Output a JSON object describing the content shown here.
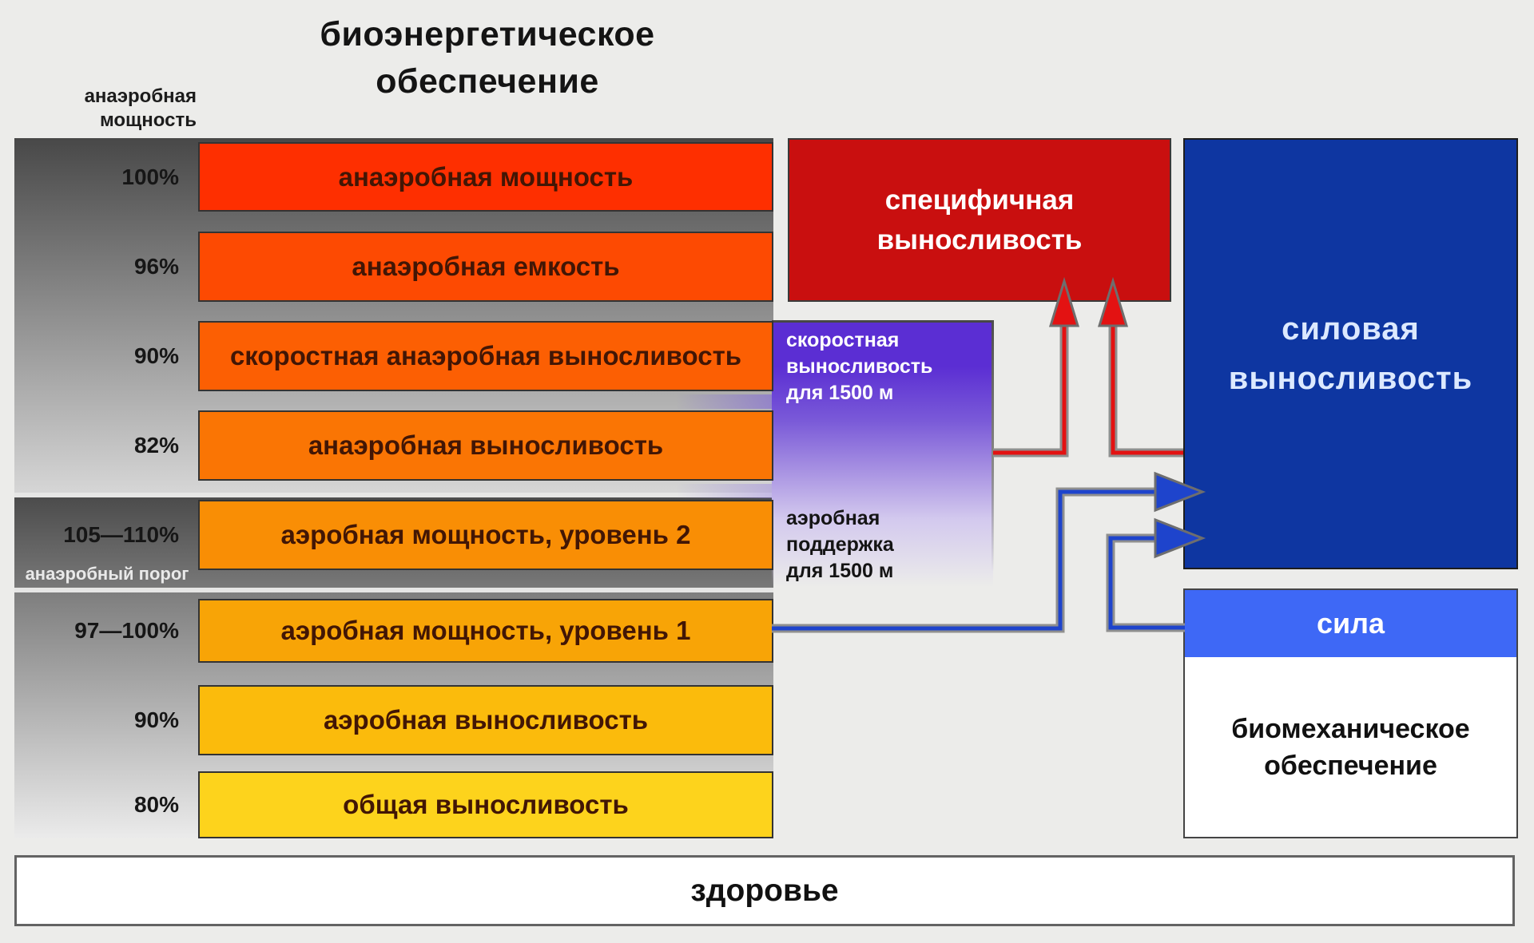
{
  "title": {
    "line1": "биоэнергетическое",
    "line2": "обеспечение"
  },
  "left_axis": {
    "header_line1": "анаэробная",
    "header_line2": "мощность",
    "threshold_label": "анаэробный порог"
  },
  "bars": [
    {
      "pct": "100%",
      "label": "анаэробная мощность",
      "color": "#fe2f00"
    },
    {
      "pct": "96%",
      "label": "анаэробная емкость",
      "color": "#fd4a02"
    },
    {
      "pct": "90%",
      "label": "скоростная анаэробная выносливость",
      "color": "#fc5f03"
    },
    {
      "pct": "82%",
      "label": "анаэробная выносливость",
      "color": "#fa7504"
    },
    {
      "pct": "105—110%",
      "label": "аэробная мощность, уровень 2",
      "color": "#f98e05"
    },
    {
      "pct": "97—100%",
      "label": "аэробная мощность, уровень 1",
      "color": "#f8a406"
    },
    {
      "pct": "90%",
      "label": "аэробная выносливость",
      "color": "#fbbb0c"
    },
    {
      "pct": "80%",
      "label": "общая выносливость",
      "color": "#fdd31c"
    }
  ],
  "purple_panel": {
    "top_line1": "скоростная",
    "top_line2": "выносливость",
    "top_line3": "для 1500 м",
    "bottom_line1": "аэробная поддержка",
    "bottom_line2": "для 1500 м",
    "color_top": "#5b2ed3"
  },
  "boxes": {
    "specific_endurance": {
      "line1": "специфичная",
      "line2": "выносливость",
      "color": "#c90f0f"
    },
    "strength_endurance": {
      "line1": "силовая",
      "line2": "выносливость",
      "color": "#0e36a1"
    },
    "strength": {
      "label": "сила",
      "color": "#3e68f6"
    },
    "biomechanical": {
      "line1": "биомеханическое",
      "line2": "обеспечение"
    },
    "health": {
      "label": "здоровье"
    }
  },
  "colors": {
    "red_arrow": "#e31212",
    "blue_arrow": "#1e44cc",
    "line_casing": "#8f8f8f",
    "background": "#ececea"
  }
}
